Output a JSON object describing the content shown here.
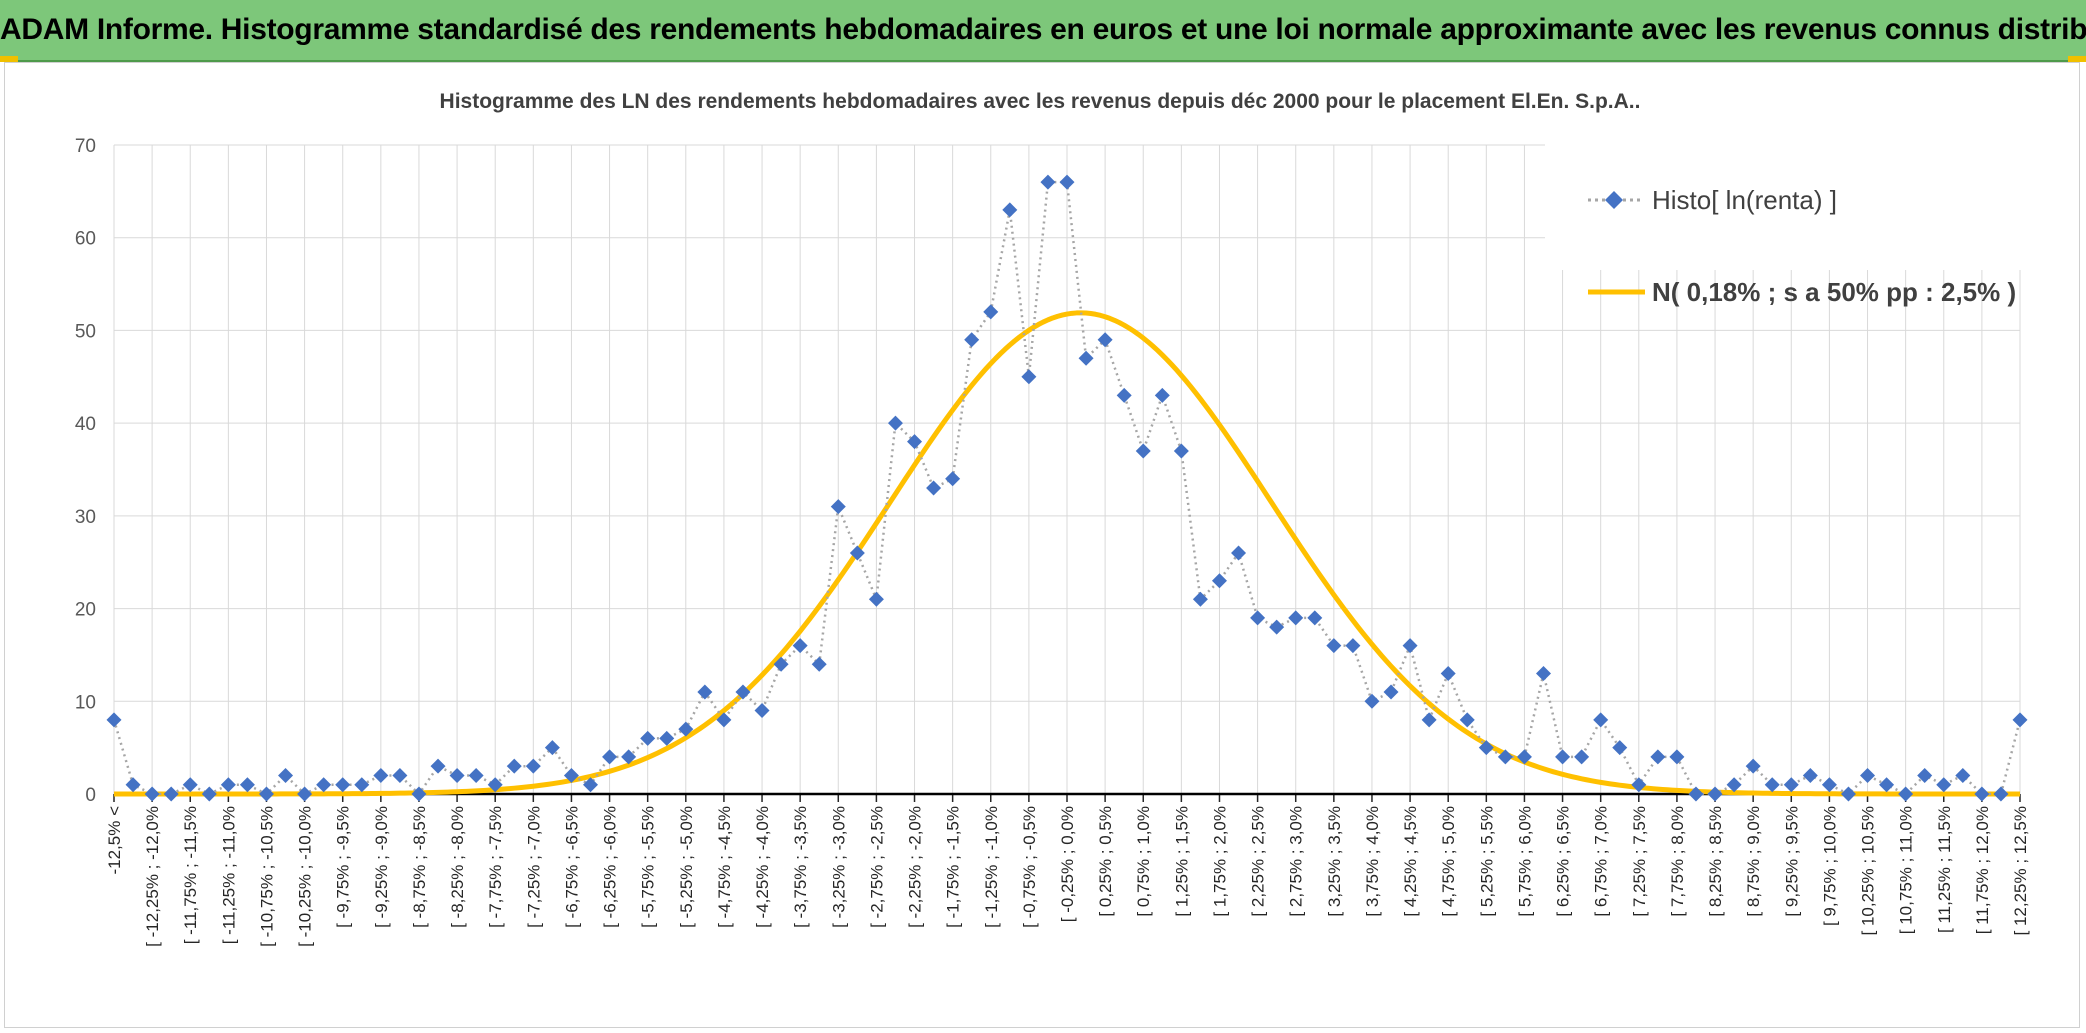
{
  "banner": {
    "title": "ADAM Informe. Histogramme standardisé des rendements hebdomadaires en euros et une loi normale approximante avec les revenus connus distribués",
    "bg": "#7dc77a"
  },
  "chart_data": {
    "type": "line",
    "title": "Histogramme des LN des rendements hebdomadaires avec les revenus depuis déc 2000 pour le placement El.En. S.p.A..",
    "categories": [
      "-12,5% <",
      "[ -12,25% ; -12,0%",
      "[ -11,75% ; -11,5%",
      "[ -11,25% ; -11,0%",
      "[ -10,75% ; -10,5%",
      "[ -10,25% ; -10,0%",
      "[ -9,75% ; -9,5%",
      "[ -9,25% ; -9,0%",
      "[ -8,75% ; -8,5%",
      "[ -8,25% ; -8,0%",
      "[ -7,75% ; -7,5%",
      "[ -7,25% ; -7,0%",
      "[ -6,75% ; -6,5%",
      "[ -6,25% ; -6,0%",
      "[ -5,75% ; -5,5%",
      "[ -5,25% ; -5,0%",
      "[ -4,75% ; -4,5%",
      "[ -4,25% ; -4,0%",
      "[ -3,75% ; -3,5%",
      "[ -3,25% ; -3,0%",
      "[ -2,75% ; -2,5%",
      "[ -2,25% ; -2,0%",
      "[ -1,75% ; -1,5%",
      "[ -1,25% ; -1,0%",
      "[ -0,75% ; -0,5%",
      "[ -0,25% ; 0,0%",
      "[ 0,25% ; 0,5%",
      "[ 0,75% ; 1,0%",
      "[ 1,25% ; 1,5%",
      "[ 1,75% ; 2,0%",
      "[ 2,25% ; 2,5%",
      "[ 2,75% ; 3,0%",
      "[ 3,25% ; 3,5%",
      "[ 3,75% ; 4,0%",
      "[ 4,25% ; 4,5%",
      "[ 4,75% ; 5,0%",
      "[ 5,25% ; 5,5%",
      "[ 5,75% ; 6,0%",
      "[ 6,25% ; 6,5%",
      "[ 6,75% ; 7,0%",
      "[ 7,25% ; 7,5%",
      "[ 7,75% ; 8,0%",
      "[ 8,25% ; 8,5%",
      "[ 8,75% ; 9,0%",
      "[ 9,25% ; 9,5%",
      "[ 9,75% ; 10,0%",
      "[ 10,25% ; 10,5%",
      "[ 10,75% ; 11,0%",
      "[ 11,25% ; 11,5%",
      "[ 11,75% ; 12,0%",
      "[ 12,25% ; 12,5%"
    ],
    "x": [
      -12.5,
      -12.25,
      -12,
      -11.75,
      -11.5,
      -11.25,
      -11,
      -10.75,
      -10.5,
      -10.25,
      -10,
      -9.75,
      -9.5,
      -9.25,
      -9,
      -8.75,
      -8.5,
      -8.25,
      -8,
      -7.75,
      -7.5,
      -7.25,
      -7,
      -6.75,
      -6.5,
      -6.25,
      -6,
      -5.75,
      -5.5,
      -5.25,
      -5,
      -4.75,
      -4.5,
      -4.25,
      -4,
      -3.75,
      -3.5,
      -3.25,
      -3,
      -2.75,
      -2.5,
      -2.25,
      -2,
      -1.75,
      -1.5,
      -1.25,
      -1,
      -0.75,
      -0.5,
      -0.25,
      0,
      0.25,
      0.5,
      0.75,
      1,
      1.25,
      1.5,
      1.75,
      2,
      2.25,
      2.5,
      2.75,
      3,
      3.25,
      3.5,
      3.75,
      4,
      4.25,
      4.5,
      4.75,
      5,
      5.25,
      5.5,
      5.75,
      6,
      6.25,
      6.5,
      6.75,
      7,
      7.25,
      7.5,
      7.75,
      8,
      8.25,
      8.5,
      8.75,
      9,
      9.25,
      9.5,
      9.75,
      10,
      10.25,
      10.5,
      10.75,
      11,
      11.25,
      11.5,
      11.75,
      12,
      12.25,
      12.5
    ],
    "series": [
      {
        "name": "Histo[ ln(renta) ]",
        "color": "#4472c4",
        "marker": "diamond",
        "line": "dotted-gray",
        "values": [
          8,
          1,
          0,
          0,
          1,
          0,
          1,
          1,
          0,
          2,
          0,
          1,
          1,
          1,
          2,
          2,
          0,
          3,
          2,
          2,
          1,
          3,
          3,
          5,
          2,
          1,
          4,
          4,
          6,
          6,
          7,
          11,
          8,
          11,
          9,
          14,
          16,
          14,
          31,
          26,
          21,
          40,
          38,
          33,
          34,
          49,
          52,
          63,
          45,
          66,
          66,
          47,
          49,
          43,
          37,
          43,
          37,
          21,
          23,
          26,
          19,
          18,
          19,
          19,
          16,
          16,
          10,
          11,
          16,
          8,
          13,
          8,
          5,
          4,
          4,
          13,
          4,
          4,
          8,
          5,
          1,
          4,
          4,
          0,
          0,
          1,
          3,
          1,
          1,
          2,
          1,
          0,
          2,
          1,
          0,
          2,
          1,
          2,
          0,
          0,
          8
        ]
      },
      {
        "name": "N( 0,18% ; s a 50% pp : 2,5% )",
        "color": "#ffc000",
        "line": "solid-smooth",
        "mean": 0.18,
        "sd": 2.5,
        "peak": 51.9
      }
    ],
    "yticks": [
      "0",
      "10",
      "20",
      "30",
      "40",
      "50",
      "60",
      "70"
    ],
    "ylim": [
      0,
      70
    ],
    "grid": true,
    "legend": "top-right"
  }
}
